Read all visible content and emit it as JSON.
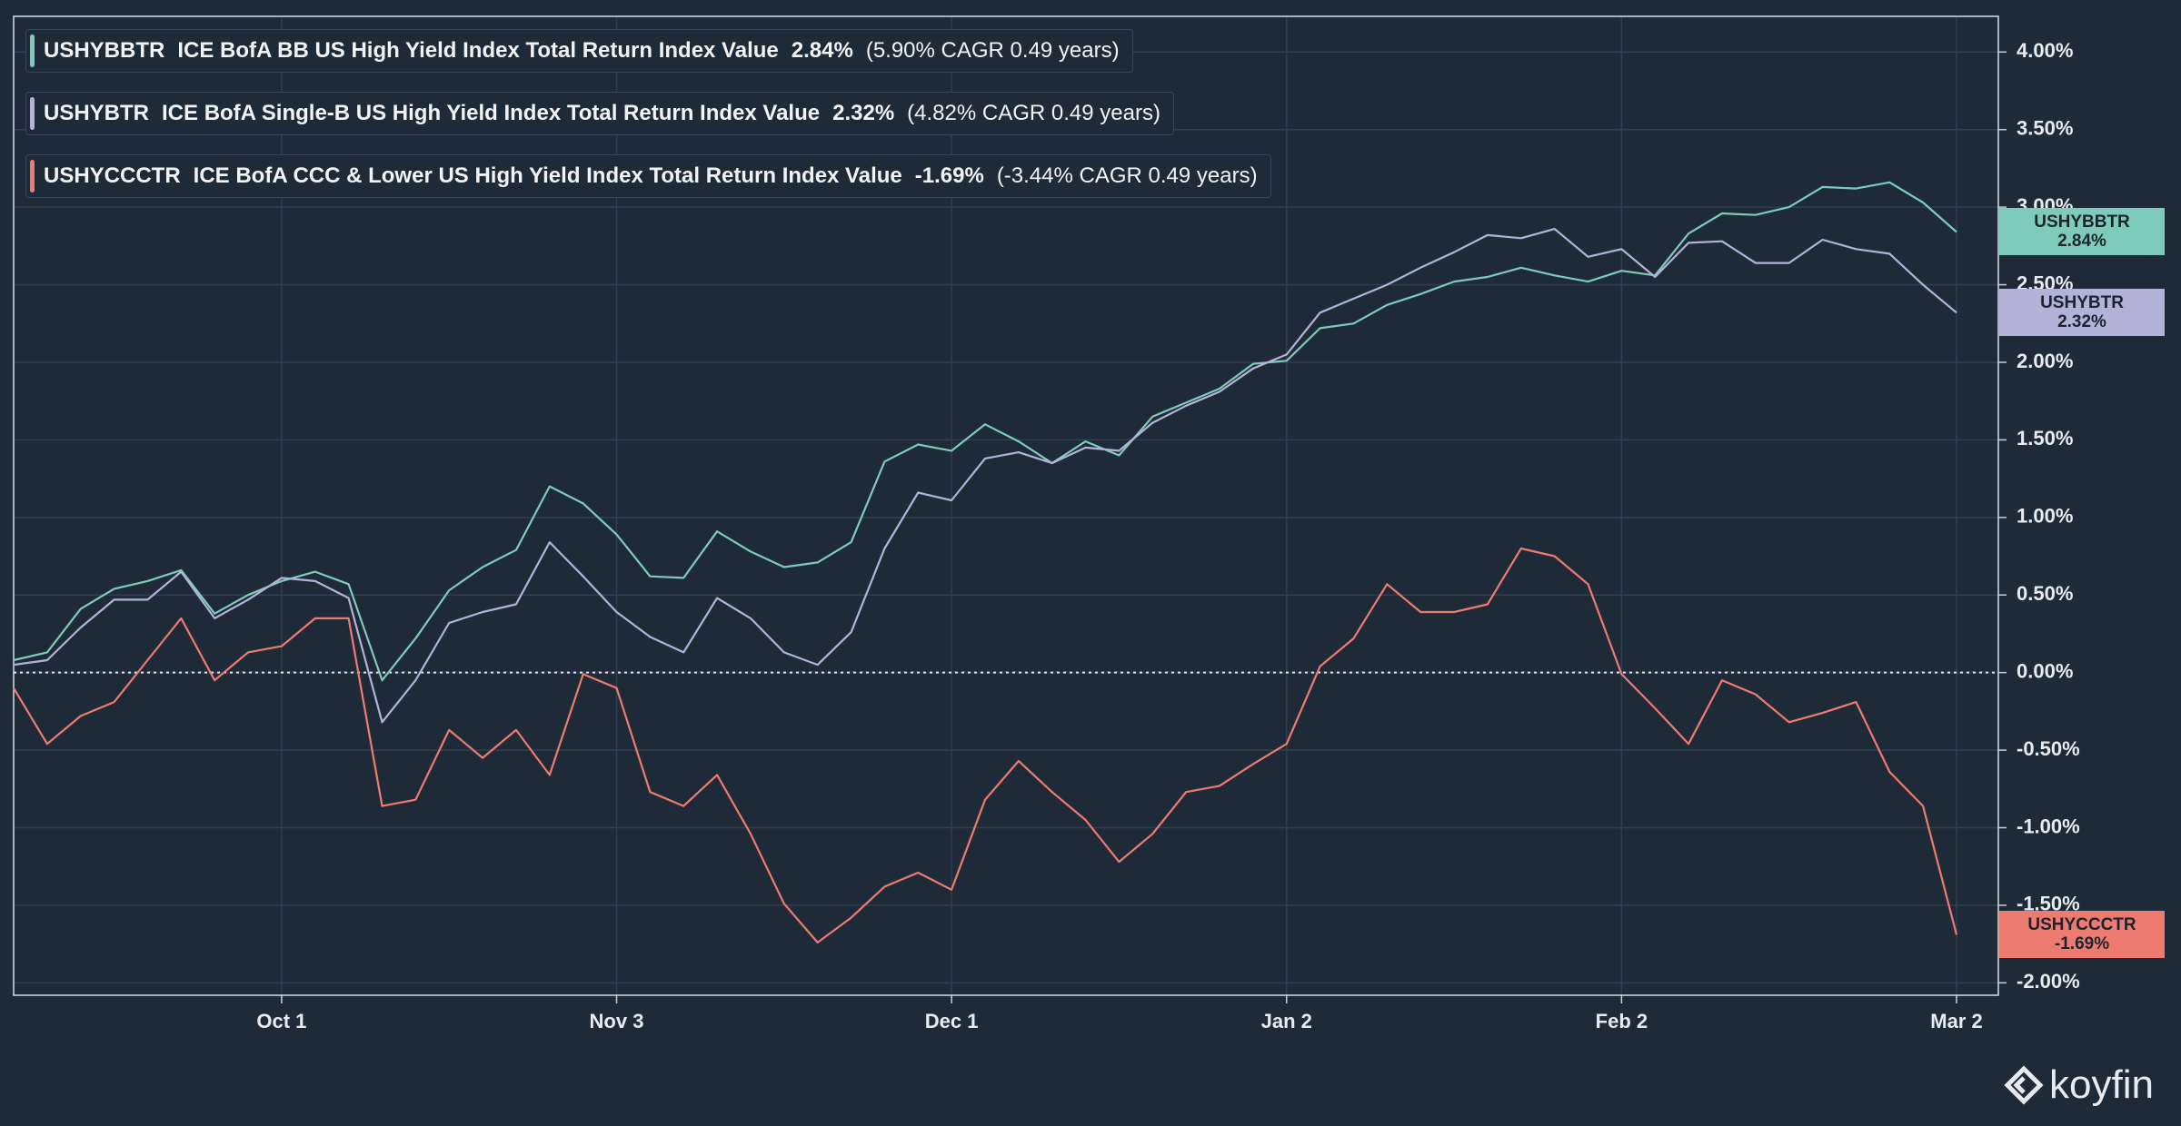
{
  "chart_data": {
    "type": "line",
    "categories": [
      null,
      null,
      null,
      null,
      null,
      null,
      null,
      null,
      "Oct 1",
      null,
      null,
      null,
      null,
      null,
      null,
      null,
      null,
      null,
      "Nov 3",
      null,
      null,
      null,
      null,
      null,
      null,
      null,
      null,
      null,
      "Dec 1",
      null,
      null,
      null,
      null,
      null,
      null,
      null,
      null,
      null,
      "Jan 2",
      null,
      null,
      null,
      null,
      null,
      null,
      null,
      null,
      null,
      "Feb 2",
      null,
      null,
      null,
      null,
      null,
      null,
      null,
      null,
      null,
      "Mar 2"
    ],
    "series": [
      {
        "name": "USHYBBTR",
        "description": "ICE BofA BB US High Yield Index Total Return Index Value",
        "last_label": "2.84%",
        "cagr_label": "(5.90% CAGR 0.49 years)",
        "color": "#7fcbbb",
        "values": [
          0.08,
          0.13,
          0.41,
          0.54,
          0.59,
          0.66,
          0.38,
          0.5,
          0.59,
          0.65,
          0.57,
          -0.05,
          0.22,
          0.53,
          0.68,
          0.79,
          1.2,
          1.09,
          0.89,
          0.62,
          0.61,
          0.91,
          0.78,
          0.68,
          0.71,
          0.84,
          1.36,
          1.47,
          1.43,
          1.6,
          1.49,
          1.35,
          1.49,
          1.4,
          1.65,
          1.74,
          1.83,
          1.99,
          2.01,
          2.22,
          2.25,
          2.37,
          2.44,
          2.52,
          2.55,
          2.61,
          2.56,
          2.52,
          2.59,
          2.56,
          2.83,
          2.96,
          2.95,
          3.0,
          3.13,
          3.12,
          3.16,
          3.03,
          2.84
        ]
      },
      {
        "name": "USHYBTR",
        "description": "ICE BofA Single-B US High Yield Index Total Return Index Value",
        "last_label": "2.32%",
        "cagr_label": "(4.82% CAGR 0.49 years)",
        "color": "#b5b2da",
        "values": [
          0.05,
          0.08,
          0.29,
          0.47,
          0.47,
          0.65,
          0.35,
          0.47,
          0.61,
          0.59,
          0.48,
          -0.32,
          -0.05,
          0.32,
          0.39,
          0.44,
          0.84,
          0.62,
          0.39,
          0.23,
          0.13,
          0.48,
          0.35,
          0.13,
          0.05,
          0.26,
          0.8,
          1.16,
          1.11,
          1.38,
          1.42,
          1.35,
          1.45,
          1.43,
          1.61,
          1.72,
          1.81,
          1.96,
          2.05,
          2.32,
          2.41,
          2.5,
          2.61,
          2.71,
          2.82,
          2.8,
          2.86,
          2.68,
          2.73,
          2.55,
          2.77,
          2.78,
          2.64,
          2.64,
          2.79,
          2.73,
          2.7,
          2.5,
          2.32
        ]
      },
      {
        "name": "USHYCCCTR",
        "description": "ICE BofA CCC & Lower US High Yield Index Total Return Index Value",
        "last_label": "-1.69%",
        "cagr_label": "(-3.44% CAGR 0.49 years)",
        "color": "#ee7b6f",
        "values": [
          -0.1,
          -0.46,
          -0.28,
          -0.19,
          0.08,
          0.35,
          -0.05,
          0.13,
          0.17,
          0.35,
          0.35,
          -0.86,
          -0.82,
          -0.37,
          -0.55,
          -0.37,
          -0.66,
          -0.01,
          -0.1,
          -0.77,
          -0.86,
          -0.66,
          -1.04,
          -1.49,
          -1.74,
          -1.58,
          -1.38,
          -1.29,
          -1.4,
          -0.82,
          -0.57,
          -0.77,
          -0.95,
          -1.22,
          -1.04,
          -0.77,
          -0.73,
          -0.59,
          -0.46,
          0.04,
          0.22,
          0.57,
          0.39,
          0.39,
          0.44,
          0.8,
          0.75,
          0.57,
          -0.01,
          -0.23,
          -0.46,
          -0.05,
          -0.14,
          -0.32,
          -0.26,
          -0.19,
          -0.64,
          -0.86,
          -1.69
        ]
      }
    ],
    "ylim": [
      -2.08,
      4.23
    ],
    "yticks": [
      {
        "value": -2,
        "label": "-2.00%"
      },
      {
        "value": -1.5,
        "label": "-1.50%"
      },
      {
        "value": -1,
        "label": "-1.00%"
      },
      {
        "value": -0.5,
        "label": "-0.50%"
      },
      {
        "value": 0,
        "label": "0.00%"
      },
      {
        "value": 0.5,
        "label": "0.50%"
      },
      {
        "value": 1,
        "label": "1.00%"
      },
      {
        "value": 1.5,
        "label": "1.50%"
      },
      {
        "value": 2,
        "label": "2.00%"
      },
      {
        "value": 2.5,
        "label": "2.50%"
      },
      {
        "value": 3,
        "label": "3.00%"
      },
      {
        "value": 3.5,
        "label": "3.50%"
      },
      {
        "value": 4,
        "label": "4.00%"
      }
    ],
    "grid": true,
    "zero_line": true,
    "legend": "upper-left",
    "brand": "koyfin"
  }
}
